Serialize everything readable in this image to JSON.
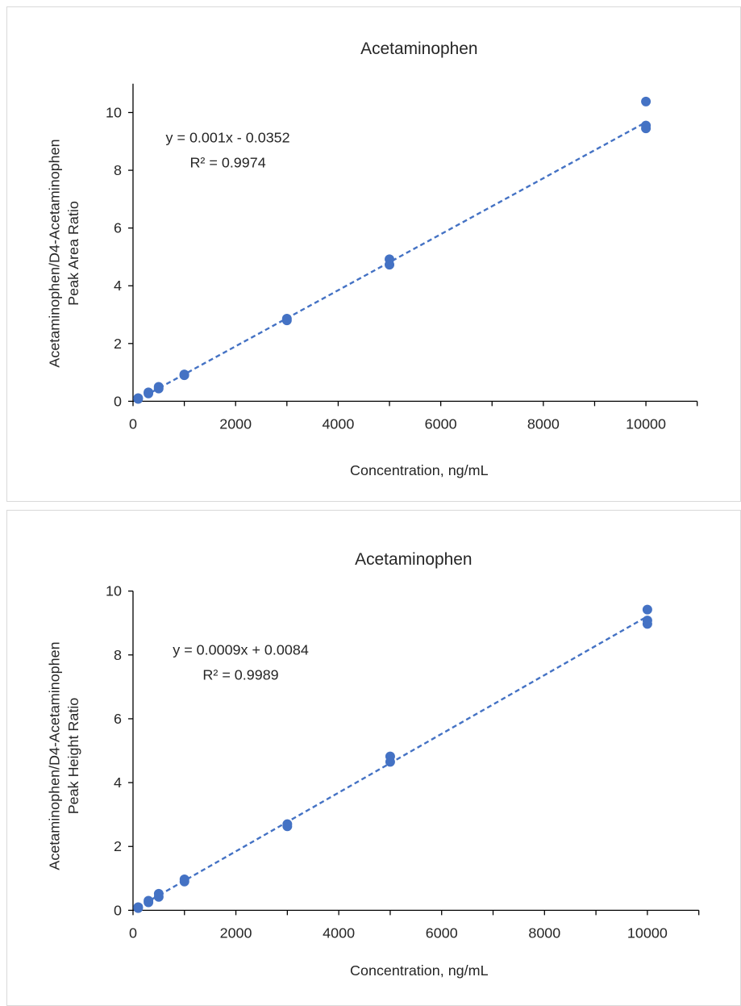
{
  "colors": {
    "series": "#4472C4",
    "axis": "#000000",
    "text": "#262626"
  },
  "chart_data": [
    {
      "type": "scatter",
      "title": "Acetaminophen",
      "xlabel": "Concentration, ng/mL",
      "ylabel_line1": "Acetaminophen/D4-Acetaminophen",
      "ylabel_line2": "Peak Area Ratio",
      "xlim": [
        0,
        11000
      ],
      "ylim": [
        0,
        11
      ],
      "xticks": [
        0,
        2000,
        4000,
        6000,
        8000,
        10000
      ],
      "yticks": [
        0,
        2,
        4,
        6,
        8,
        10
      ],
      "xtick_labels": [
        "0",
        "2000",
        "4000",
        "6000",
        "8000",
        "10000"
      ],
      "ytick_labels": [
        "0",
        "2",
        "4",
        "6",
        "8",
        "10"
      ],
      "trendline": {
        "slope": 0.00097,
        "intercept": -0.0352,
        "x_range": [
          100,
          10000
        ]
      },
      "equation": "y = 0.001x - 0.0352",
      "r_squared": "R² = 0.9974",
      "points": [
        {
          "x": 100,
          "y": 0.08
        },
        {
          "x": 100,
          "y": 0.11
        },
        {
          "x": 300,
          "y": 0.27
        },
        {
          "x": 300,
          "y": 0.31
        },
        {
          "x": 500,
          "y": 0.44
        },
        {
          "x": 500,
          "y": 0.5
        },
        {
          "x": 1000,
          "y": 0.9
        },
        {
          "x": 1000,
          "y": 0.93
        },
        {
          "x": 3000,
          "y": 2.8
        },
        {
          "x": 3000,
          "y": 2.86
        },
        {
          "x": 5000,
          "y": 4.73
        },
        {
          "x": 5000,
          "y": 4.92
        },
        {
          "x": 10000,
          "y": 9.45
        },
        {
          "x": 10000,
          "y": 9.55
        },
        {
          "x": 10000,
          "y": 10.38
        }
      ],
      "grid": false,
      "legend": "none"
    },
    {
      "type": "scatter",
      "title": "Acetaminophen",
      "xlabel": "Concentration, ng/mL",
      "ylabel_line1": "Acetaminophen/D4-Acetaminophen",
      "ylabel_line2": "Peak Height Ratio",
      "xlim": [
        0,
        11000
      ],
      "ylim": [
        0,
        10
      ],
      "xticks": [
        0,
        2000,
        4000,
        6000,
        8000,
        10000
      ],
      "yticks": [
        0,
        2,
        4,
        6,
        8,
        10
      ],
      "xtick_labels": [
        "0",
        "2000",
        "4000",
        "6000",
        "8000",
        "10000"
      ],
      "ytick_labels": [
        "0",
        "2",
        "4",
        "6",
        "8",
        "10"
      ],
      "trendline": {
        "slope": 0.00092,
        "intercept": 0.0084,
        "x_range": [
          100,
          10000
        ]
      },
      "equation": "y = 0.0009x + 0.0084",
      "r_squared": "R² = 0.9989",
      "points": [
        {
          "x": 100,
          "y": 0.07
        },
        {
          "x": 100,
          "y": 0.1
        },
        {
          "x": 300,
          "y": 0.25
        },
        {
          "x": 300,
          "y": 0.3
        },
        {
          "x": 500,
          "y": 0.42
        },
        {
          "x": 500,
          "y": 0.52
        },
        {
          "x": 1000,
          "y": 0.9
        },
        {
          "x": 1000,
          "y": 0.97
        },
        {
          "x": 3000,
          "y": 2.63
        },
        {
          "x": 3000,
          "y": 2.7
        },
        {
          "x": 5000,
          "y": 4.65
        },
        {
          "x": 5000,
          "y": 4.82
        },
        {
          "x": 10000,
          "y": 8.97
        },
        {
          "x": 10000,
          "y": 9.08
        },
        {
          "x": 10000,
          "y": 9.42
        }
      ],
      "grid": false,
      "legend": "none"
    }
  ]
}
